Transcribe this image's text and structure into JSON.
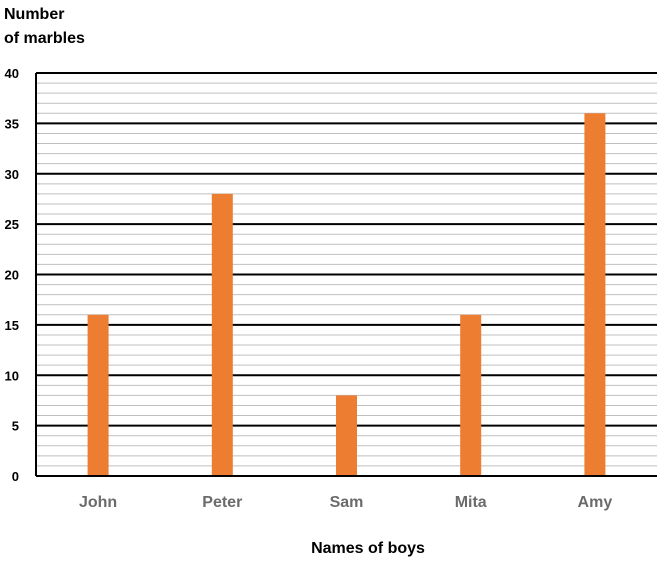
{
  "chart_data": {
    "type": "bar",
    "title": "",
    "ylabel_lines": [
      "Number",
      "of marbles"
    ],
    "xlabel": "Names  of boys",
    "categories": [
      "John",
      "Peter",
      "Sam",
      "Mita",
      "Amy"
    ],
    "values": [
      16,
      28,
      8,
      16,
      36
    ],
    "ylim": [
      0,
      40
    ],
    "major_ticks": [
      0,
      5,
      10,
      15,
      20,
      25,
      30,
      35,
      40
    ],
    "minor_step": 1,
    "grid": true,
    "bar_color": "#ed7d31",
    "major_grid_color": "#000000",
    "minor_grid_color": "#bfbfbf"
  }
}
